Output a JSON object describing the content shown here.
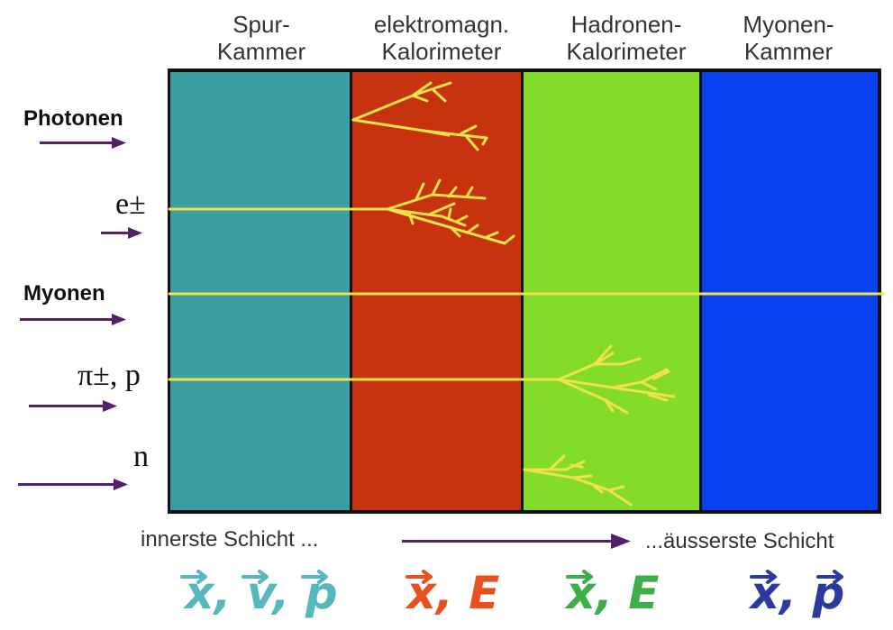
{
  "columns": [
    {
      "line1": "Spur-",
      "line2": "Kammer",
      "color": "#3a9ea2"
    },
    {
      "line1": "elektromagn.",
      "line2": "Kalorimeter",
      "color": "#c8330f"
    },
    {
      "line1": "Hadronen-",
      "line2": "Kalorimeter",
      "color": "#84dc2a"
    },
    {
      "line1": "Myonen-",
      "line2": "Kammer",
      "color": "#0a40f0"
    }
  ],
  "particles": [
    {
      "label": "Photonen"
    },
    {
      "label": "e±"
    },
    {
      "label": "Myonen"
    },
    {
      "label": "π±, p"
    },
    {
      "label": "n"
    }
  ],
  "axis": {
    "inner": "innerste Schicht ...",
    "outer": "...äusserste Schicht"
  },
  "quantities": [
    {
      "parts": [
        "x",
        ", ",
        "v",
        ", ",
        "p"
      ],
      "color": "#56b7bd"
    },
    {
      "parts": [
        "x",
        ", ",
        "E"
      ],
      "color": "#e8501e"
    },
    {
      "parts": [
        "x",
        ", ",
        "E"
      ],
      "color": "#3fae49"
    },
    {
      "parts": [
        "x",
        ", ",
        "p"
      ],
      "color": "#2b3a9c"
    }
  ],
  "colors": {
    "track": "#f0e24a",
    "arrow": "#55206a",
    "border": "#111111"
  }
}
